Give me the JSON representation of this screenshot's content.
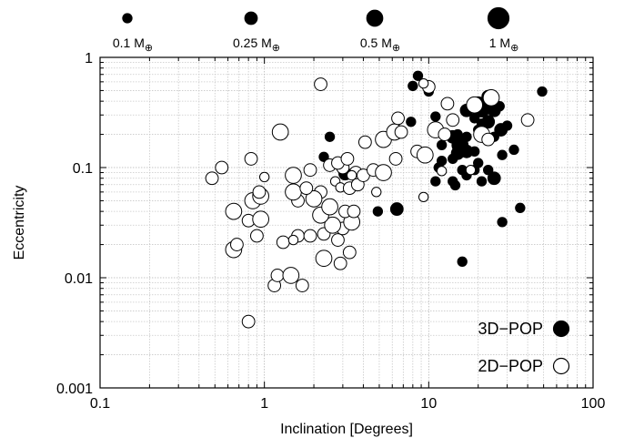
{
  "chart_data": {
    "type": "scatter",
    "xlabel": "Inclination [Degrees]",
    "ylabel": "Eccentricity",
    "x_scale": "log",
    "y_scale": "log",
    "xlim": [
      0.1,
      100
    ],
    "ylim": [
      0.001,
      1
    ],
    "x_ticks": [
      "0.1",
      "1",
      "10",
      "100"
    ],
    "y_ticks": [
      "0.001",
      "0.01",
      "0.1",
      "1"
    ],
    "grid": true,
    "legend_placement": "bottom-right",
    "size_legend": [
      {
        "label": "0.1 M",
        "symbol": "⊕",
        "mass": 0.1
      },
      {
        "label": "0.25 M",
        "symbol": "⊕",
        "mass": 0.25
      },
      {
        "label": "0.5 M",
        "symbol": "⊕",
        "mass": 0.5
      },
      {
        "label": "1 M",
        "symbol": "⊕",
        "mass": 1
      }
    ],
    "series": [
      {
        "name": "3D−POP",
        "fill": "#000000",
        "points": [
          [
            8.6,
            0.68,
            0.1
          ],
          [
            8.0,
            0.55,
            0.1
          ],
          [
            10.0,
            0.49,
            0.1
          ],
          [
            49.0,
            0.49,
            0.1
          ],
          [
            23.0,
            0.44,
            0.25
          ],
          [
            20.0,
            0.37,
            0.5
          ],
          [
            21.0,
            0.34,
            0.5
          ],
          [
            25.0,
            0.33,
            0.25
          ],
          [
            27.0,
            0.36,
            0.1
          ],
          [
            17.0,
            0.33,
            0.25
          ],
          [
            23.0,
            0.26,
            0.25
          ],
          [
            19.0,
            0.28,
            0.1
          ],
          [
            21.0,
            0.25,
            0.1
          ],
          [
            27.5,
            0.22,
            0.25
          ],
          [
            30.0,
            0.24,
            0.1
          ],
          [
            20.0,
            0.22,
            0.1
          ],
          [
            11.0,
            0.29,
            0.1
          ],
          [
            7.8,
            0.26,
            0.1
          ],
          [
            25.0,
            0.19,
            0.1
          ],
          [
            15.0,
            0.2,
            0.1
          ],
          [
            17.0,
            0.19,
            0.1
          ],
          [
            14.0,
            0.19,
            0.25
          ],
          [
            15.5,
            0.16,
            0.5
          ],
          [
            15.0,
            0.135,
            0.25
          ],
          [
            17.0,
            0.14,
            0.25
          ],
          [
            19.0,
            0.14,
            0.1
          ],
          [
            28.0,
            0.13,
            0.1
          ],
          [
            33.0,
            0.145,
            0.1
          ],
          [
            12.0,
            0.16,
            0.1
          ],
          [
            11.5,
            0.1,
            0.1
          ],
          [
            12.0,
            0.115,
            0.1
          ],
          [
            14.0,
            0.12,
            0.1
          ],
          [
            20.0,
            0.11,
            0.1
          ],
          [
            19.0,
            0.095,
            0.1
          ],
          [
            23.0,
            0.095,
            0.1
          ],
          [
            21.0,
            0.075,
            0.1
          ],
          [
            16.0,
            0.095,
            0.1
          ],
          [
            17.0,
            0.085,
            0.1
          ],
          [
            14.0,
            0.075,
            0.1
          ],
          [
            14.5,
            0.069,
            0.1
          ],
          [
            25.0,
            0.08,
            0.25
          ],
          [
            11.0,
            0.075,
            0.1
          ],
          [
            3.1,
            0.088,
            0.25
          ],
          [
            2.3,
            0.125,
            0.1
          ],
          [
            2.5,
            0.19,
            0.1
          ],
          [
            4.9,
            0.04,
            0.1
          ],
          [
            6.4,
            0.042,
            0.25
          ],
          [
            36.0,
            0.043,
            0.1
          ],
          [
            28.0,
            0.032,
            0.1
          ],
          [
            16.0,
            0.014,
            0.1
          ]
        ]
      },
      {
        "name": "2D−POP",
        "fill": "#ffffff",
        "points": [
          [
            0.8,
            0.004,
            0.25
          ],
          [
            1.15,
            0.0085,
            0.25
          ],
          [
            1.2,
            0.0105,
            0.25
          ],
          [
            1.45,
            0.0105,
            0.5
          ],
          [
            1.7,
            0.0085,
            0.25
          ],
          [
            2.9,
            0.0135,
            0.25
          ],
          [
            1.3,
            0.021,
            0.25
          ],
          [
            1.6,
            0.024,
            0.25
          ],
          [
            2.3,
            0.015,
            0.5
          ],
          [
            3.3,
            0.017,
            0.25
          ],
          [
            0.65,
            0.018,
            0.5
          ],
          [
            0.68,
            0.02,
            0.25
          ],
          [
            0.9,
            0.024,
            0.25
          ],
          [
            0.85,
            0.05,
            0.5
          ],
          [
            0.95,
            0.055,
            0.5
          ],
          [
            0.93,
            0.06,
            0.25
          ],
          [
            0.8,
            0.033,
            0.25
          ],
          [
            0.65,
            0.04,
            0.5
          ],
          [
            0.95,
            0.034,
            0.5
          ],
          [
            1.5,
            0.022,
            0.1
          ],
          [
            1.9,
            0.024,
            0.25
          ],
          [
            2.3,
            0.025,
            0.25
          ],
          [
            2.8,
            0.022,
            0.25
          ],
          [
            3.0,
            0.028,
            0.25
          ],
          [
            3.4,
            0.032,
            0.5
          ],
          [
            2.6,
            0.03,
            0.5
          ],
          [
            2.2,
            0.037,
            0.5
          ],
          [
            2.5,
            0.044,
            0.5
          ],
          [
            3.1,
            0.04,
            0.25
          ],
          [
            3.5,
            0.04,
            0.25
          ],
          [
            2.2,
            0.06,
            0.25
          ],
          [
            2.0,
            0.052,
            0.5
          ],
          [
            1.6,
            0.05,
            0.25
          ],
          [
            1.5,
            0.06,
            0.5
          ],
          [
            1.8,
            0.065,
            0.25
          ],
          [
            2.7,
            0.075,
            0.1
          ],
          [
            2.9,
            0.066,
            0.1
          ],
          [
            3.3,
            0.065,
            0.25
          ],
          [
            3.0,
            0.1,
            0.25
          ],
          [
            3.7,
            0.07,
            0.25
          ],
          [
            3.6,
            0.09,
            0.25
          ],
          [
            4.0,
            0.085,
            0.25
          ],
          [
            1.5,
            0.085,
            0.5
          ],
          [
            1.9,
            0.095,
            0.25
          ],
          [
            2.5,
            0.105,
            0.25
          ],
          [
            2.8,
            0.11,
            0.25
          ],
          [
            3.2,
            0.12,
            0.25
          ],
          [
            3.4,
            0.085,
            0.1
          ],
          [
            4.6,
            0.095,
            0.25
          ],
          [
            5.3,
            0.09,
            0.5
          ],
          [
            4.8,
            0.06,
            0.1
          ],
          [
            9.3,
            0.054,
            0.1
          ],
          [
            6.3,
            0.12,
            0.25
          ],
          [
            5.3,
            0.18,
            0.5
          ],
          [
            6.2,
            0.21,
            0.5
          ],
          [
            6.8,
            0.21,
            0.25
          ],
          [
            6.5,
            0.28,
            0.25
          ],
          [
            8.5,
            0.14,
            0.25
          ],
          [
            9.5,
            0.13,
            0.5
          ],
          [
            11.0,
            0.22,
            0.5
          ],
          [
            12.5,
            0.2,
            0.25
          ],
          [
            14.0,
            0.27,
            0.25
          ],
          [
            13.0,
            0.38,
            0.25
          ],
          [
            10.0,
            0.54,
            0.25
          ],
          [
            9.3,
            0.58,
            0.1
          ],
          [
            21.0,
            0.2,
            0.5
          ],
          [
            23.0,
            0.18,
            0.25
          ],
          [
            19.0,
            0.37,
            0.5
          ],
          [
            24.0,
            0.43,
            0.5
          ],
          [
            40.0,
            0.27,
            0.25
          ],
          [
            18.0,
            0.095,
            0.1
          ],
          [
            12.0,
            0.093,
            0.1
          ],
          [
            2.2,
            0.57,
            0.25
          ],
          [
            1.25,
            0.21,
            0.5
          ],
          [
            0.48,
            0.08,
            0.25
          ],
          [
            0.55,
            0.1,
            0.25
          ],
          [
            0.83,
            0.12,
            0.25
          ],
          [
            1.0,
            0.082,
            0.1
          ],
          [
            4.1,
            0.17,
            0.25
          ]
        ]
      }
    ]
  }
}
